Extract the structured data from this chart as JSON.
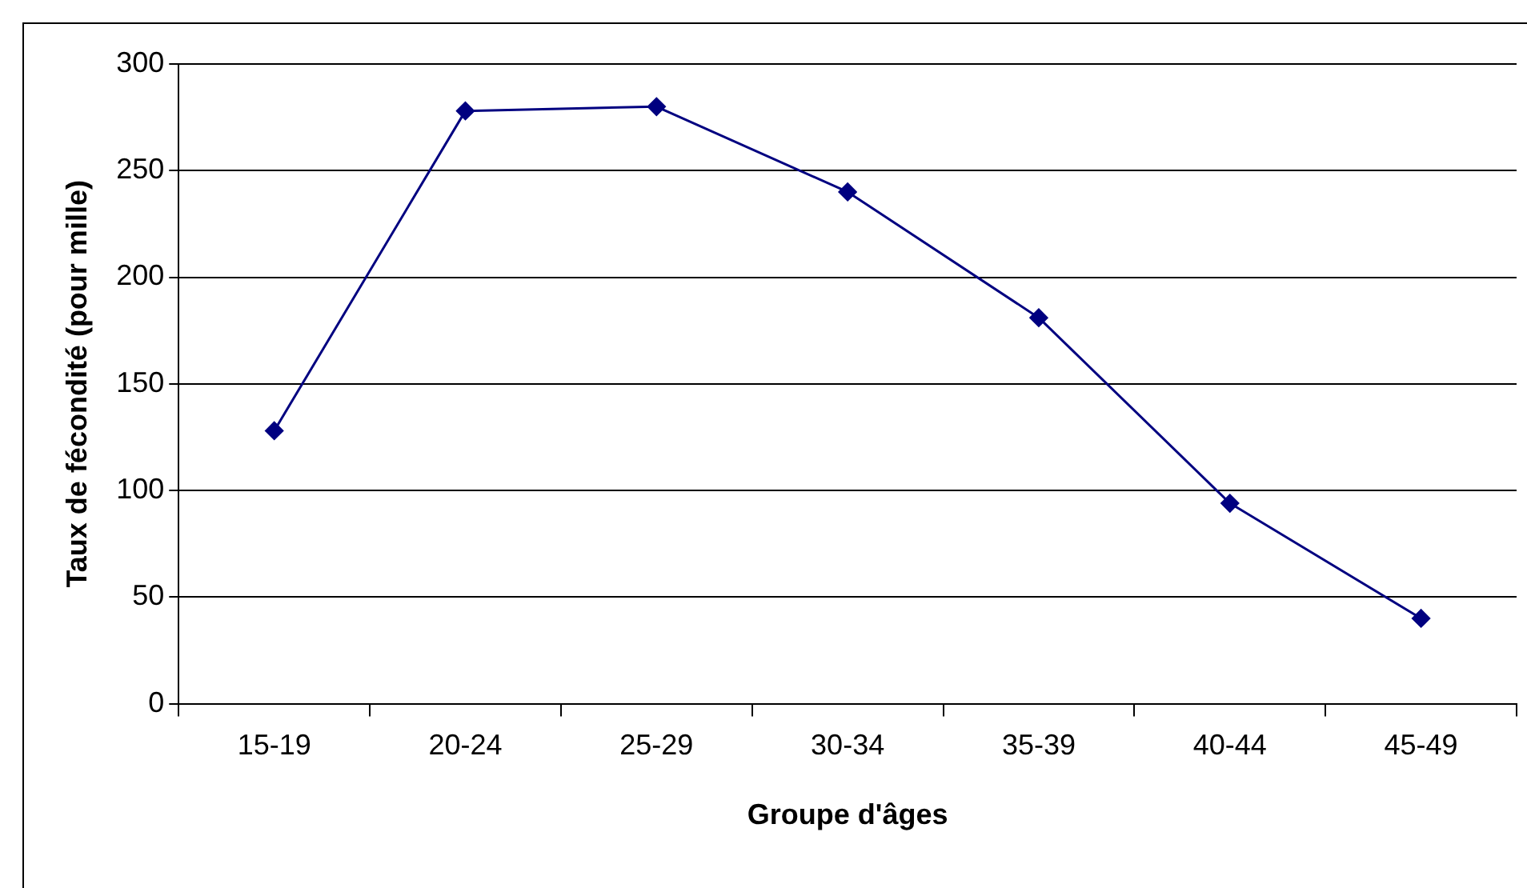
{
  "chart_data": {
    "type": "line",
    "xlabel": "Groupe d'âges",
    "ylabel": "Taux de fécondité (pour mille)",
    "categories": [
      "15-19",
      "20-24",
      "25-29",
      "30-34",
      "35-39",
      "40-44",
      "45-49"
    ],
    "series": [
      {
        "color": "#000080",
        "values": [
          128,
          278,
          280,
          240,
          181,
          94,
          40
        ]
      }
    ],
    "ylim": [
      0,
      300
    ],
    "yticks": [
      0,
      50,
      100,
      150,
      200,
      250,
      300
    ],
    "grid": "y",
    "legend": false,
    "marker": "diamond",
    "line_style": "solid"
  }
}
